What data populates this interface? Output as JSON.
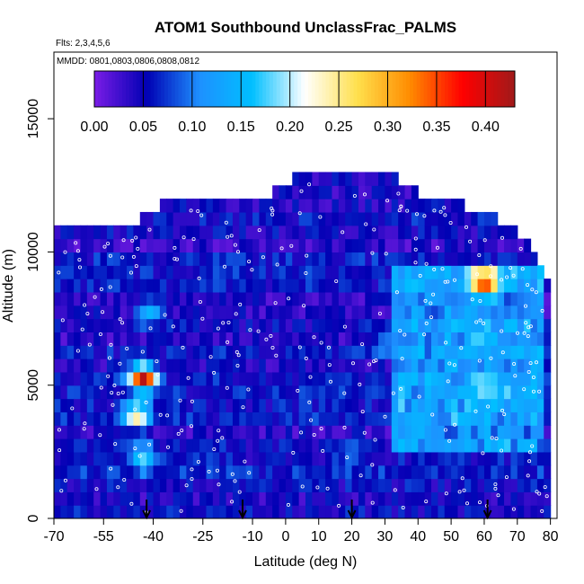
{
  "chart_data": {
    "type": "heatmap",
    "title": "ATOM1 Southbound UnclassFrac_PALMS",
    "flights_note": "Flts: 2,3,4,5,6",
    "dates_note": "MMDD: 0801,0803,0806,0808,0812",
    "xlabel": "Latitude (deg N)",
    "ylabel": "Altitude (m)",
    "xlim": [
      -70,
      82
    ],
    "ylim": [
      0,
      17500
    ],
    "x_ticks": [
      -70,
      -55,
      -40,
      -25,
      -10,
      0,
      10,
      20,
      30,
      40,
      50,
      60,
      70,
      80
    ],
    "x_tick_labels": [
      "-70",
      "-55",
      "-40",
      "-25",
      "-10",
      "0",
      "10",
      "20",
      "30",
      "40",
      "50",
      "60",
      "70",
      "80"
    ],
    "y_ticks": [
      0,
      5000,
      10000,
      15000
    ],
    "y_tick_labels": [
      "0",
      "5000",
      "10000",
      "15000"
    ],
    "colorbar": {
      "min": 0.0,
      "max": 0.43,
      "ticks": [
        0.0,
        0.05,
        0.1,
        0.15,
        0.2,
        0.25,
        0.3,
        0.35,
        0.4
      ],
      "tick_labels": [
        "0.00",
        "0.05",
        "0.10",
        "0.15",
        "0.20",
        "0.25",
        "0.30",
        "0.35",
        "0.40"
      ],
      "colors": [
        "#7a1de6",
        "#0000b3",
        "#1e90ff",
        "#00bfff",
        "#ffffff",
        "#ffe04d",
        "#ff8c00",
        "#ff0000",
        "#a01a1a"
      ]
    },
    "flight_markers_lat": [
      -42,
      -13,
      20,
      61
    ],
    "coverage_top_m": [
      [
        -70,
        10500
      ],
      [
        -60,
        10600
      ],
      [
        -53,
        10800
      ],
      [
        -45,
        11000
      ],
      [
        -35,
        11800
      ],
      [
        -25,
        12000
      ],
      [
        -15,
        12000
      ],
      [
        -5,
        12000
      ],
      [
        2,
        12500
      ],
      [
        10,
        12800
      ],
      [
        20,
        12800
      ],
      [
        30,
        12800
      ],
      [
        40,
        12000
      ],
      [
        50,
        11800
      ],
      [
        60,
        11200
      ],
      [
        68,
        10800
      ],
      [
        75,
        10000
      ],
      [
        79,
        8800
      ],
      [
        80,
        7000
      ]
    ],
    "hotspots": [
      {
        "lat": -43,
        "alt": 5300,
        "value": 0.42
      },
      {
        "lat": -45,
        "alt": 3900,
        "value": 0.26
      },
      {
        "lat": -43,
        "alt": 2300,
        "value": 0.18
      },
      {
        "lat": -41,
        "alt": 7700,
        "value": 0.15
      },
      {
        "lat": 60,
        "alt": 8900,
        "value": 0.38
      },
      {
        "lat": 58,
        "alt": 6800,
        "value": 0.18
      },
      {
        "lat": 60,
        "alt": 5000,
        "value": 0.2
      },
      {
        "lat": 55,
        "alt": 7500,
        "value": 0.14
      },
      {
        "lat": 30,
        "alt": 6500,
        "value": 0.12
      },
      {
        "lat": 20,
        "alt": 2500,
        "value": 0.1
      }
    ]
  }
}
